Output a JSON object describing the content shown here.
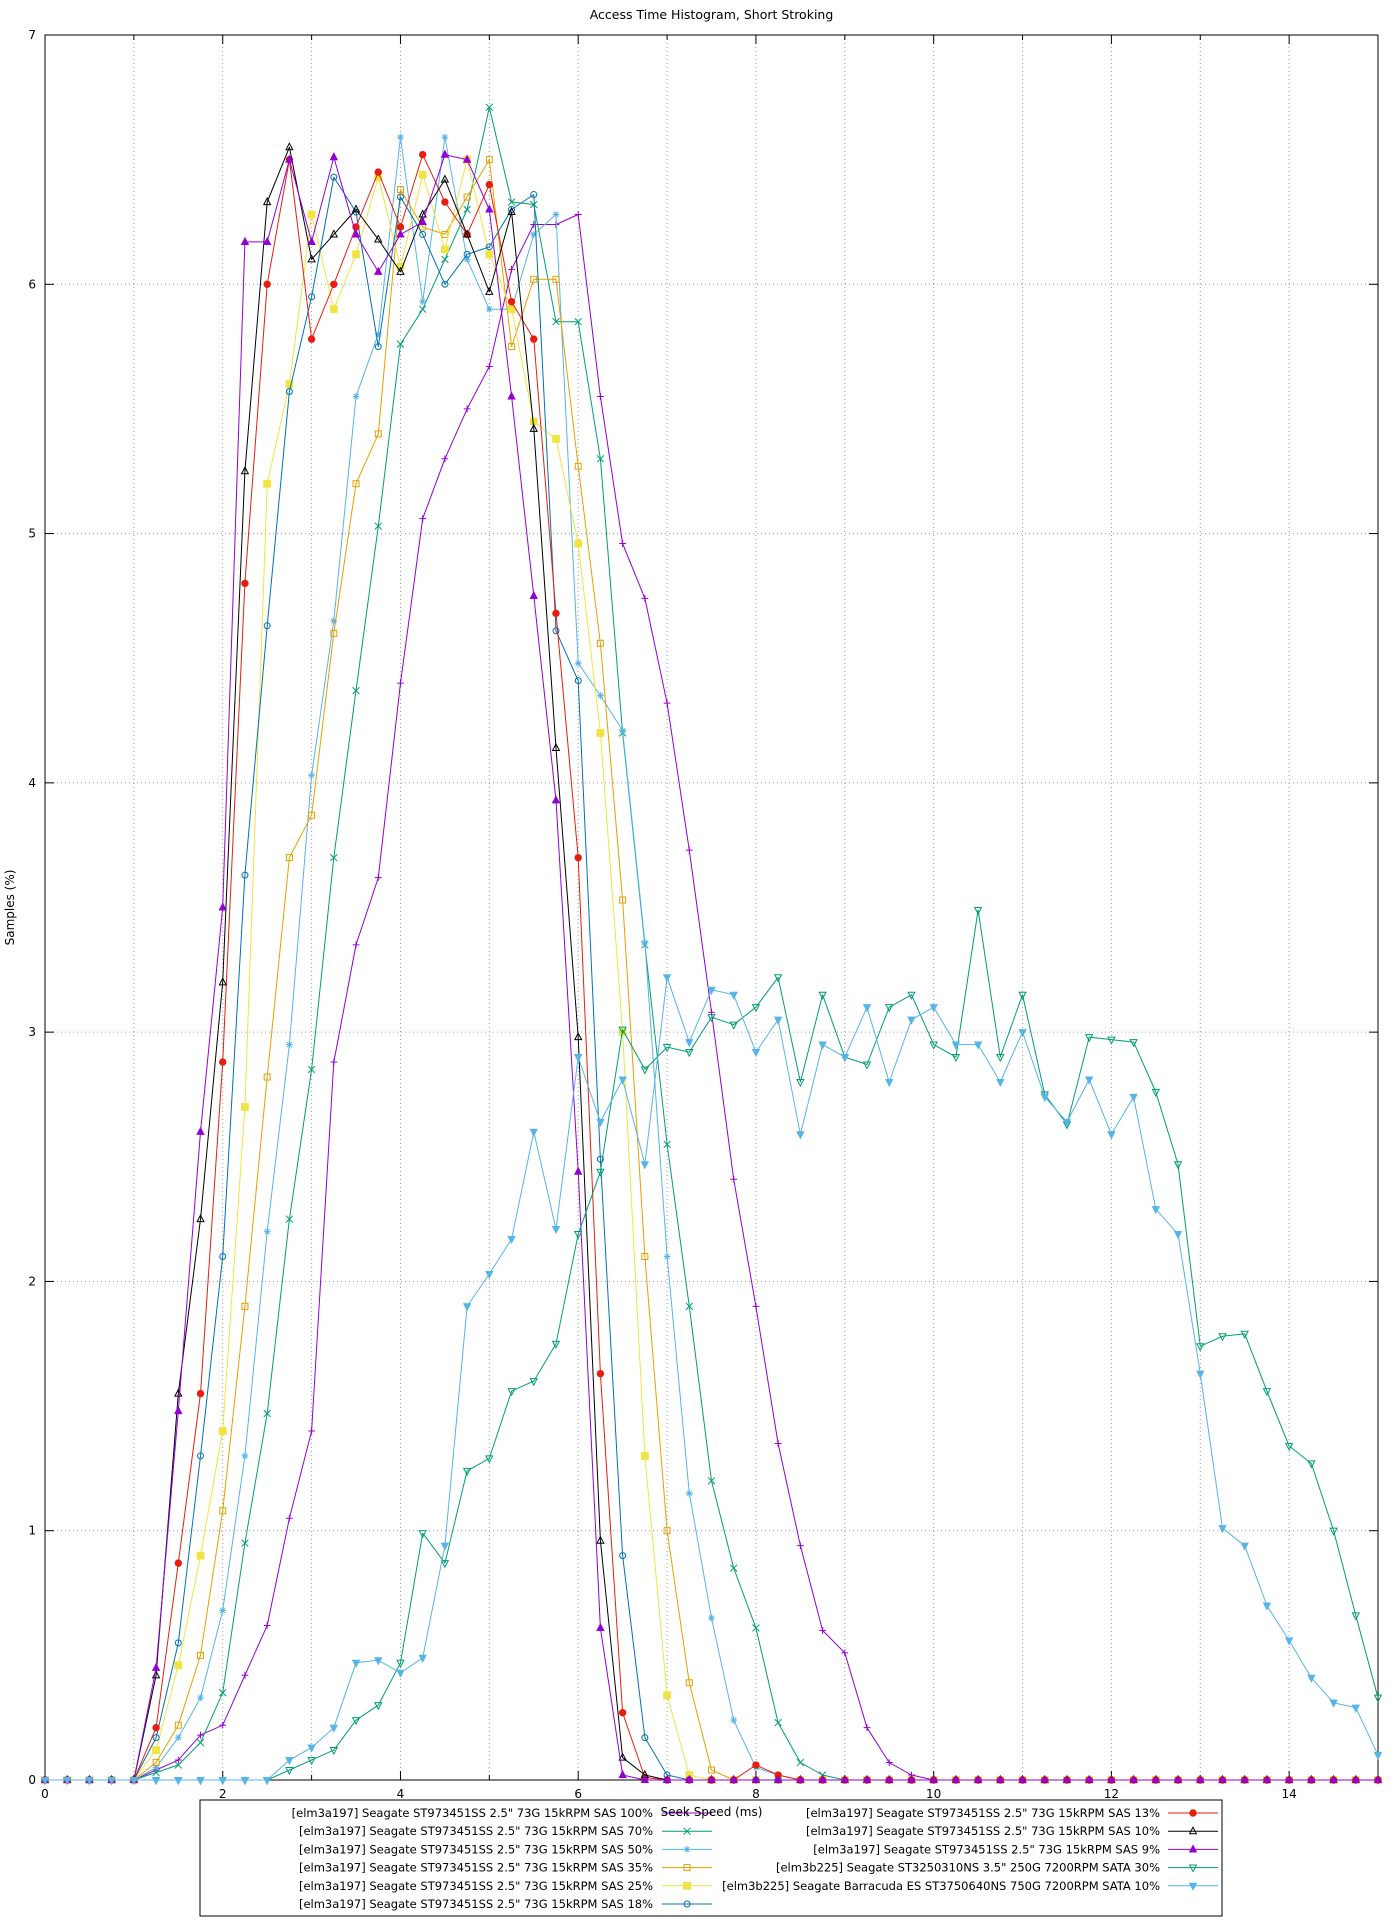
{
  "page": {
    "title": "Access Time Histogram, Short Stroking"
  },
  "chart_data": {
    "type": "line",
    "title": "Access Time Histogram, Short Stroking",
    "xlabel": "Seek Speed (ms)",
    "ylabel": "Samples (%)",
    "xlim": [
      0,
      15
    ],
    "ylim": [
      0,
      7
    ],
    "xtick_labeled": [
      0,
      2,
      4,
      6,
      8,
      10,
      12,
      14
    ],
    "ytick_labeled": [
      0,
      1,
      2,
      3,
      4,
      5,
      6,
      7
    ],
    "grid": "dotted gray at every 1 unit on both axes, full plot border with mirrored ticks",
    "legend_position": "boxed, below plot, two columns",
    "x_start": 0,
    "x_step": 0.25,
    "series": [
      {
        "name": "[elm3a197] Seagate ST973451SS 2.5\" 73G 15kRPM SAS 100%",
        "color": "#9400d3",
        "marker": "plus",
        "legend_column": "left",
        "values": [
          0,
          0,
          0,
          0,
          0,
          0.04,
          0.08,
          0.18,
          0.22,
          0.42,
          0.62,
          1.05,
          1.4,
          2.88,
          3.35,
          3.62,
          4.4,
          5.06,
          5.3,
          5.5,
          5.67,
          6.06,
          6.24,
          6.24,
          6.28,
          5.55,
          4.96,
          4.74,
          4.32,
          3.73,
          3.08,
          2.41,
          1.9,
          1.35,
          0.94,
          0.6,
          0.51,
          0.21,
          0.07,
          0.02,
          0,
          0,
          0,
          0,
          0,
          0,
          0,
          0,
          0,
          0,
          0,
          0,
          0,
          0,
          0,
          0,
          0,
          0,
          0,
          0,
          0
        ]
      },
      {
        "name": "[elm3a197] Seagate ST973451SS 2.5\" 73G 15kRPM SAS 70%",
        "color": "#009e73",
        "marker": "x",
        "legend_column": "left",
        "values": [
          0,
          0,
          0,
          0,
          0,
          0.03,
          0.06,
          0.15,
          0.35,
          0.95,
          1.47,
          2.25,
          2.85,
          3.7,
          4.37,
          5.03,
          5.76,
          5.9,
          6.1,
          6.3,
          6.71,
          6.33,
          6.32,
          5.85,
          5.85,
          5.3,
          4.2,
          3.35,
          2.55,
          1.9,
          1.2,
          0.85,
          0.61,
          0.23,
          0.07,
          0.02,
          0,
          0,
          0,
          0,
          0,
          0,
          0,
          0,
          0,
          0,
          0,
          0,
          0,
          0,
          0,
          0,
          0,
          0,
          0,
          0,
          0,
          0,
          0,
          0,
          0
        ]
      },
      {
        "name": "[elm3a197] Seagate ST973451SS 2.5\" 73G 15kRPM SAS 50%",
        "color": "#56b4e9",
        "marker": "asterisk",
        "legend_column": "left",
        "values": [
          0,
          0,
          0,
          0,
          0,
          0.05,
          0.17,
          0.33,
          0.68,
          1.3,
          2.2,
          2.95,
          4.03,
          4.65,
          5.55,
          5.8,
          6.59,
          5.93,
          6.59,
          6.1,
          5.9,
          5.9,
          6.2,
          6.28,
          4.48,
          4.35,
          4.21,
          3.36,
          2.1,
          1.15,
          0.65,
          0.24,
          0.05,
          0.02,
          0,
          0,
          0,
          0,
          0,
          0,
          0,
          0,
          0,
          0,
          0,
          0,
          0,
          0,
          0,
          0,
          0,
          0,
          0,
          0,
          0,
          0,
          0,
          0,
          0,
          0,
          0
        ]
      },
      {
        "name": "[elm3a197] Seagate ST973451SS 2.5\" 73G 15kRPM SAS 35%",
        "color": "#e69f00",
        "marker": "square-open",
        "legend_column": "left",
        "values": [
          0,
          0,
          0,
          0,
          0,
          0.07,
          0.22,
          0.5,
          1.08,
          1.9,
          2.82,
          3.7,
          3.87,
          4.6,
          5.2,
          5.4,
          6.38,
          6.23,
          6.2,
          6.35,
          6.5,
          5.75,
          6.02,
          6.02,
          5.27,
          4.56,
          3.53,
          2.1,
          1.0,
          0.39,
          0.04,
          0,
          0,
          0,
          0,
          0,
          0,
          0,
          0,
          0,
          0,
          0,
          0,
          0,
          0,
          0,
          0,
          0,
          0,
          0,
          0,
          0,
          0,
          0,
          0,
          0,
          0,
          0,
          0,
          0,
          0
        ]
      },
      {
        "name": "[elm3a197] Seagate ST973451SS 2.5\" 73G 15kRPM SAS 25%",
        "color": "#f0e442",
        "marker": "square-filled",
        "legend_column": "left",
        "values": [
          0,
          0,
          0,
          0,
          0,
          0.12,
          0.46,
          0.9,
          1.4,
          2.7,
          5.2,
          5.6,
          6.28,
          5.9,
          6.12,
          6.43,
          6.07,
          6.44,
          6.14,
          6.5,
          6.12,
          5.9,
          5.45,
          5.38,
          4.96,
          4.2,
          3.0,
          1.3,
          0.34,
          0.02,
          0,
          0,
          0,
          0,
          0,
          0,
          0,
          0,
          0,
          0,
          0,
          0,
          0,
          0,
          0,
          0,
          0,
          0,
          0,
          0,
          0,
          0,
          0,
          0,
          0,
          0,
          0,
          0,
          0,
          0,
          0
        ]
      },
      {
        "name": "[elm3a197] Seagate ST973451SS 2.5\" 73G 15kRPM SAS 18%",
        "color": "#0072b2",
        "marker": "circle-open",
        "legend_column": "left",
        "values": [
          0,
          0,
          0,
          0,
          0,
          0.17,
          0.55,
          1.3,
          2.1,
          3.63,
          4.63,
          5.57,
          5.95,
          6.43,
          6.29,
          5.75,
          6.35,
          6.2,
          6.0,
          6.12,
          6.15,
          6.3,
          6.36,
          4.61,
          4.41,
          2.49,
          0.9,
          0.17,
          0.02,
          0,
          0,
          0,
          0,
          0,
          0,
          0,
          0,
          0,
          0,
          0,
          0,
          0,
          0,
          0,
          0,
          0,
          0,
          0,
          0,
          0,
          0,
          0,
          0,
          0,
          0,
          0,
          0,
          0,
          0,
          0,
          0
        ]
      },
      {
        "name": "[elm3a197] Seagate ST973451SS 2.5\" 73G 15kRPM SAS 13%",
        "color": "#e51e10",
        "marker": "circle-filled",
        "legend_column": "right",
        "values": [
          0,
          0,
          0,
          0,
          0,
          0.21,
          0.87,
          1.55,
          2.88,
          4.8,
          6.0,
          6.5,
          5.78,
          6.0,
          6.23,
          6.45,
          6.23,
          6.52,
          6.33,
          6.2,
          6.4,
          5.93,
          5.78,
          4.68,
          3.7,
          1.63,
          0.27,
          0.01,
          0,
          0,
          0,
          0,
          0.06,
          0.02,
          0,
          0,
          0,
          0,
          0,
          0,
          0,
          0,
          0,
          0,
          0,
          0,
          0,
          0,
          0,
          0,
          0,
          0,
          0,
          0,
          0,
          0,
          0,
          0,
          0,
          0,
          0
        ]
      },
      {
        "name": "[elm3a197] Seagate ST973451SS 2.5\" 73G 15kRPM SAS 10%",
        "color": "#000000",
        "marker": "triangle-up-open",
        "legend_column": "right",
        "values": [
          0,
          0,
          0,
          0,
          0,
          0.42,
          1.55,
          2.25,
          3.2,
          5.25,
          6.33,
          6.55,
          6.1,
          6.2,
          6.3,
          6.18,
          6.05,
          6.28,
          6.42,
          6.2,
          5.97,
          6.29,
          5.42,
          4.14,
          2.98,
          0.96,
          0.09,
          0.02,
          0,
          0,
          0,
          0,
          0,
          0,
          0,
          0,
          0,
          0,
          0,
          0,
          0,
          0,
          0,
          0,
          0,
          0,
          0,
          0,
          0,
          0,
          0,
          0,
          0,
          0,
          0,
          0,
          0,
          0,
          0,
          0,
          0
        ]
      },
      {
        "name": "[elm3a197] Seagate ST973451SS 2.5\" 73G 15kRPM SAS 9%",
        "color": "#9400d3",
        "marker": "triangle-up-filled",
        "legend_column": "right",
        "values": [
          0,
          0,
          0,
          0,
          0,
          0.45,
          1.48,
          2.6,
          3.5,
          6.17,
          6.17,
          6.5,
          6.17,
          6.51,
          6.2,
          6.05,
          6.2,
          6.25,
          6.52,
          6.5,
          6.3,
          5.55,
          4.75,
          3.93,
          2.44,
          0.61,
          0.02,
          0,
          0,
          0,
          0,
          0,
          0,
          0,
          0,
          0,
          0,
          0,
          0,
          0,
          0,
          0,
          0,
          0,
          0,
          0,
          0,
          0,
          0,
          0,
          0,
          0,
          0,
          0,
          0,
          0,
          0,
          0,
          0,
          0,
          0
        ]
      },
      {
        "name": "[elm3b225] Seagate ST3250310NS 3.5\" 250G 7200RPM SATA 30%",
        "color": "#009e73",
        "marker": "triangle-down-open",
        "legend_column": "right",
        "values": [
          0,
          0,
          0,
          0,
          0,
          0,
          0,
          0,
          0,
          0,
          0,
          0.04,
          0.08,
          0.12,
          0.24,
          0.3,
          0.47,
          0.99,
          0.87,
          1.24,
          1.29,
          1.56,
          1.6,
          1.75,
          2.19,
          2.44,
          3.01,
          2.85,
          2.94,
          2.92,
          3.06,
          3.03,
          3.1,
          3.22,
          2.8,
          3.15,
          2.9,
          2.87,
          3.1,
          3.15,
          2.95,
          2.9,
          3.49,
          2.9,
          3.15,
          2.75,
          2.63,
          2.98,
          2.97,
          2.96,
          2.76,
          2.47,
          1.74,
          1.78,
          1.79,
          1.56,
          1.34,
          1.27,
          1.0,
          0.66,
          0.33
        ]
      },
      {
        "name": "[elm3b225] Seagate Barracuda ES ST3750640NS 750G 7200RPM SATA 10%",
        "color": "#56b4e9",
        "marker": "triangle-down-filled",
        "legend_column": "right",
        "values": [
          0,
          0,
          0,
          0,
          0,
          0,
          0,
          0,
          0,
          0,
          0,
          0.08,
          0.13,
          0.21,
          0.47,
          0.48,
          0.43,
          0.49,
          0.94,
          1.9,
          2.03,
          2.17,
          2.6,
          2.21,
          2.9,
          2.64,
          2.81,
          2.47,
          3.22,
          2.96,
          3.17,
          3.15,
          2.92,
          3.05,
          2.59,
          2.95,
          2.9,
          3.1,
          2.8,
          3.05,
          3.1,
          2.95,
          2.95,
          2.8,
          3.0,
          2.74,
          2.64,
          2.81,
          2.59,
          2.74,
          2.29,
          2.19,
          1.63,
          1.01,
          0.94,
          0.7,
          0.56,
          0.41,
          0.31,
          0.29,
          0.1
        ]
      }
    ]
  }
}
